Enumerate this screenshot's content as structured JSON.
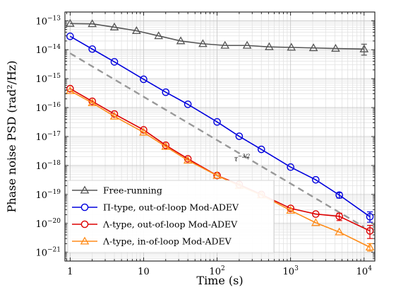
{
  "chart_data": {
    "type": "line",
    "xlabel": "Time (s)",
    "ylabel": "Phase noise PSD (rad²/Hz)",
    "xscale": "log",
    "yscale": "log",
    "xlim": [
      0.85,
      14000
    ],
    "ylim": [
      5e-22,
      2e-13
    ],
    "x_ticks": [
      {
        "value": 1,
        "base": "1",
        "exp": ""
      },
      {
        "value": 10,
        "base": "10",
        "exp": ""
      },
      {
        "value": 100,
        "base": "10",
        "exp": "2"
      },
      {
        "value": 1000,
        "base": "10",
        "exp": "3"
      },
      {
        "value": 10000,
        "base": "10",
        "exp": "4"
      }
    ],
    "y_ticks": [
      {
        "value": 1e-13,
        "base": "10",
        "exp": "−13"
      },
      {
        "value": 1e-14,
        "base": "10",
        "exp": "−14"
      },
      {
        "value": 1e-15,
        "base": "10",
        "exp": "−15"
      },
      {
        "value": 1e-16,
        "base": "10",
        "exp": "−16"
      },
      {
        "value": 1e-17,
        "base": "10",
        "exp": "−17"
      },
      {
        "value": 1e-18,
        "base": "10",
        "exp": "−18"
      },
      {
        "value": 1e-19,
        "base": "10",
        "exp": "−19"
      },
      {
        "value": 1e-20,
        "base": "10",
        "exp": "−20"
      },
      {
        "value": 1e-21,
        "base": "10",
        "exp": "−21"
      }
    ],
    "grid": true,
    "legend_position": "bottom-left",
    "series": [
      {
        "name": "Free-running",
        "color": "#555555",
        "marker": "triangle",
        "x": [
          1,
          2,
          4,
          8,
          16,
          32,
          64,
          128,
          256,
          512,
          1024,
          2048,
          4096,
          10000
        ],
        "y": [
          8e-14,
          7.8e-14,
          6e-14,
          4.5e-14,
          3e-14,
          2e-14,
          1.6e-14,
          1.4e-14,
          1.4e-14,
          1.25e-14,
          1.2e-14,
          1.15e-14,
          1.1e-14,
          1.05e-14
        ],
        "err_low": [
          0,
          0,
          0,
          0,
          0,
          0,
          0,
          0,
          0,
          0,
          0,
          0,
          0,
          4e-15
        ],
        "err_high": [
          0,
          0,
          0,
          0,
          0,
          0,
          0,
          0,
          0,
          0,
          0,
          0,
          0,
          5e-15
        ]
      },
      {
        "name": "Π-type, out-of-loop Mod-ADEV",
        "color": "#0000dd",
        "marker": "circle",
        "x": [
          1,
          2,
          4,
          10,
          20,
          40,
          100,
          200,
          400,
          1000,
          2200,
          4600,
          12000
        ],
        "y": [
          2.9e-14,
          1.05e-14,
          3.8e-15,
          9.5e-16,
          3.4e-16,
          1.3e-16,
          3.2e-17,
          1.02e-17,
          3.6e-18,
          8.8e-19,
          3.2e-19,
          9.5e-20,
          1.7e-20
        ],
        "err_low": [
          0,
          0,
          0,
          0,
          0,
          0,
          0,
          0,
          0,
          0,
          0,
          2e-20,
          6e-21
        ],
        "err_high": [
          0,
          0,
          0,
          0,
          0,
          0,
          0,
          0,
          0,
          0,
          0,
          2e-20,
          8e-21
        ]
      },
      {
        "name": "Λ-type, out-of-loop Mod-ADEV",
        "color": "#dd0000",
        "marker": "circle",
        "x": [
          1,
          2,
          4,
          10,
          20,
          40,
          100,
          200,
          400,
          1000,
          2200,
          4600,
          12000
        ],
        "y": [
          4.5e-16,
          1.65e-16,
          6e-17,
          1.7e-17,
          5e-18,
          1.7e-18,
          4.5e-19,
          2.2e-19,
          1e-19,
          3.3e-20,
          2.1e-20,
          1.75e-20,
          5.5e-21
        ],
        "err_low": [
          0,
          0,
          0,
          0,
          0,
          0,
          0,
          0,
          0,
          0,
          0,
          5e-21,
          2.5e-21
        ],
        "err_high": [
          0,
          0,
          0,
          0,
          0,
          0,
          0,
          0,
          0,
          0,
          0,
          5e-21,
          3e-21
        ]
      },
      {
        "name": "Λ-type, in-of-loop Mod-ADEV",
        "color": "#ff8c1a",
        "marker": "triangle",
        "x": [
          1,
          2,
          4,
          10,
          20,
          40,
          100,
          200,
          400,
          1000,
          2200,
          4600,
          12000
        ],
        "y": [
          3.8e-16,
          1.45e-16,
          5e-17,
          1.4e-17,
          4.5e-18,
          1.5e-18,
          4.5e-19,
          2e-19,
          9.5e-20,
          2.8e-20,
          1.05e-20,
          5e-21,
          1.5e-21
        ],
        "err_low": [
          0,
          0,
          0,
          0,
          0,
          0,
          0,
          0,
          0,
          0,
          0,
          0,
          4e-22
        ],
        "err_high": [
          0,
          0,
          0,
          0,
          0,
          0,
          0,
          0,
          0,
          0,
          0,
          0,
          5e-22
        ]
      }
    ],
    "reference_line": {
      "label": "τ^{−3/2}",
      "label_base": "τ",
      "label_exp": "−3/2",
      "color": "#999999",
      "style": "dashed",
      "x": [
        1,
        10000
      ],
      "y": [
        7.5e-15,
        7.5e-21
      ]
    }
  }
}
